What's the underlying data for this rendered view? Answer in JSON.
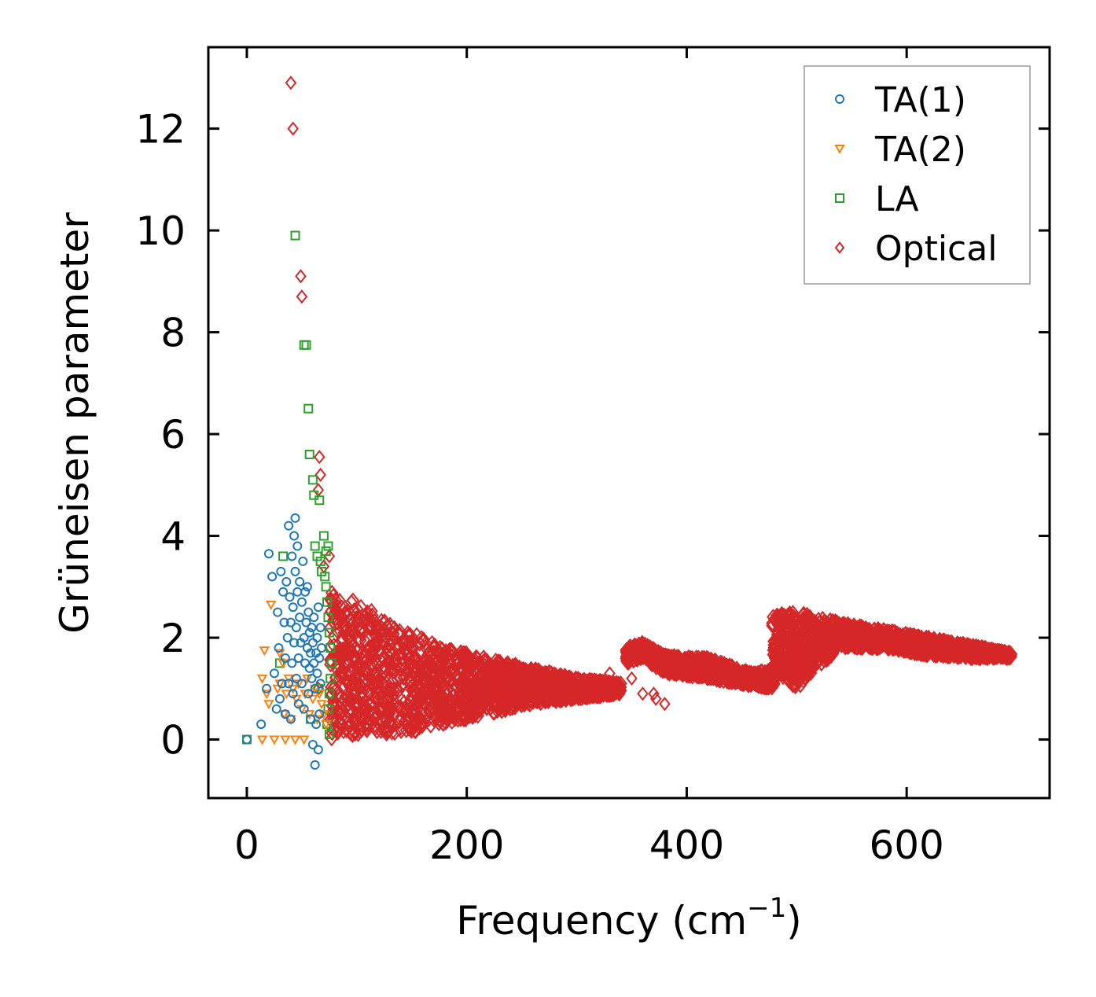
{
  "chart_data": {
    "type": "scatter",
    "title": "",
    "xlabel": "Frequency (cm",
    "xlabel_sup": "−1",
    "xlabel_end": ")",
    "ylabel": "Grüneisen parameter",
    "xlim": [
      -35,
      730
    ],
    "ylim": [
      -1.15,
      13.6
    ],
    "xticks": [
      0,
      200,
      400,
      600
    ],
    "yticks": [
      0,
      2,
      4,
      6,
      8,
      10,
      12
    ],
    "legend_position": "top-right",
    "series": [
      {
        "name": "TA(1)",
        "marker": "circle",
        "color": "#1f77b4",
        "points": [
          [
            0,
            0
          ],
          [
            13,
            0.3
          ],
          [
            18,
            1.0
          ],
          [
            20,
            3.65
          ],
          [
            23,
            3.2
          ],
          [
            25,
            1.3
          ],
          [
            27,
            0.6
          ],
          [
            28,
            2.5
          ],
          [
            29,
            1.8
          ],
          [
            30,
            0.8
          ],
          [
            31,
            3.3
          ],
          [
            32,
            1.1
          ],
          [
            33,
            2.9
          ],
          [
            34,
            2.3
          ],
          [
            35,
            0.5
          ],
          [
            35,
            1.6
          ],
          [
            36,
            3.1
          ],
          [
            37,
            2.0
          ],
          [
            38,
            1.1
          ],
          [
            38,
            4.2
          ],
          [
            39,
            2.8
          ],
          [
            40,
            0.4
          ],
          [
            40,
            2.3
          ],
          [
            41,
            1.5
          ],
          [
            41,
            3.6
          ],
          [
            42,
            0.9
          ],
          [
            42,
            2.6
          ],
          [
            43,
            4.0
          ],
          [
            43,
            1.9
          ],
          [
            44,
            3.3
          ],
          [
            44,
            4.35
          ],
          [
            45,
            1.2
          ],
          [
            45,
            2.2
          ],
          [
            46,
            2.9
          ],
          [
            46,
            3.8
          ],
          [
            47,
            1.6
          ],
          [
            47,
            0.7
          ],
          [
            48,
            2.4
          ],
          [
            48,
            3.1
          ],
          [
            49,
            1.9
          ],
          [
            50,
            1.1
          ],
          [
            50,
            2.7
          ],
          [
            51,
            3.5
          ],
          [
            52,
            2.0
          ],
          [
            52,
            0.6
          ],
          [
            53,
            1.5
          ],
          [
            53,
            2.9
          ],
          [
            54,
            2.3
          ],
          [
            55,
            1.8
          ],
          [
            55,
            3.0
          ],
          [
            56,
            0.9
          ],
          [
            56,
            2.5
          ],
          [
            57,
            1.4
          ],
          [
            57,
            2.1
          ],
          [
            58,
            1.7
          ],
          [
            58,
            0.4
          ],
          [
            59,
            2.2
          ],
          [
            59,
            1.2
          ],
          [
            60,
            1.9
          ],
          [
            60,
            -0.1
          ],
          [
            61,
            1.5
          ],
          [
            61,
            2.4
          ],
          [
            62,
            -0.5
          ],
          [
            62,
            1.0
          ],
          [
            63,
            1.7
          ],
          [
            63,
            0.3
          ],
          [
            64,
            2.0
          ],
          [
            64,
            1.3
          ],
          [
            65,
            -0.2
          ],
          [
            65,
            2.6
          ],
          [
            66,
            1.6
          ],
          [
            66,
            0.5
          ],
          [
            67,
            1.1
          ],
          [
            67,
            2.2
          ],
          [
            68,
            1.8
          ]
        ]
      },
      {
        "name": "TA(2)",
        "marker": "triangle-down",
        "color": "#ff7f0e",
        "points": [
          [
            14,
            1.2
          ],
          [
            14,
            0
          ],
          [
            18,
            0.9
          ],
          [
            20,
            0.7
          ],
          [
            25,
            0
          ],
          [
            28,
            1.0
          ],
          [
            30,
            1.1
          ],
          [
            33,
            1.5
          ],
          [
            34,
            0.5
          ],
          [
            35,
            0
          ],
          [
            36,
            0.9
          ],
          [
            38,
            1.2
          ],
          [
            40,
            0.4
          ],
          [
            42,
            1.0
          ],
          [
            44,
            0
          ],
          [
            45,
            0.8
          ],
          [
            47,
            1.1
          ],
          [
            50,
            0.6
          ],
          [
            52,
            0
          ],
          [
            53,
            0.9
          ],
          [
            55,
            1.2
          ],
          [
            57,
            0.5
          ],
          [
            60,
            0.8
          ],
          [
            62,
            1.0
          ],
          [
            64,
            0.4
          ],
          [
            66,
            0.9
          ],
          [
            68,
            0.7
          ],
          [
            70,
            0.5
          ],
          [
            72,
            0.3
          ],
          [
            22,
            2.65
          ],
          [
            16,
            1.75
          ],
          [
            30,
            1.7
          ]
        ]
      },
      {
        "name": "LA",
        "marker": "square",
        "color": "#2ca02c",
        "points": [
          [
            0,
            0
          ],
          [
            33,
            3.6
          ],
          [
            44,
            9.9
          ],
          [
            52,
            7.75
          ],
          [
            54,
            7.75
          ],
          [
            56,
            6.5
          ],
          [
            57,
            5.6
          ],
          [
            60,
            5.1
          ],
          [
            61,
            4.8
          ],
          [
            66,
            4.7
          ],
          [
            62,
            3.8
          ],
          [
            64,
            3.6
          ],
          [
            67,
            3.5
          ],
          [
            68,
            3.3
          ],
          [
            70,
            4.0
          ],
          [
            71,
            3.2
          ],
          [
            72,
            3.0
          ],
          [
            73,
            2.7
          ],
          [
            74,
            2.4
          ],
          [
            75,
            2.1
          ],
          [
            76,
            1.8
          ],
          [
            77,
            1.5
          ],
          [
            76,
            1.2
          ],
          [
            75,
            0.9
          ],
          [
            74,
            0.6
          ],
          [
            73,
            0.3
          ],
          [
            75,
            0.1
          ],
          [
            74,
            3.8
          ],
          [
            72,
            3.7
          ],
          [
            30,
            1.5
          ],
          [
            58,
            0.4
          ],
          [
            65,
            1.0
          ]
        ]
      },
      {
        "name": "Optical",
        "marker": "diamond",
        "color": "#d62728",
        "points": [
          [
            40,
            12.9
          ],
          [
            42,
            12.0
          ],
          [
            49,
            9.1
          ],
          [
            50,
            8.7
          ],
          [
            66,
            5.55
          ],
          [
            67,
            5.2
          ],
          [
            65,
            4.9
          ],
          [
            70,
            3.4
          ],
          [
            75,
            3.6
          ],
          [
            65,
            1.0
          ],
          [
            380,
            0.7
          ],
          [
            370,
            0.9
          ],
          [
            330,
            1.3
          ],
          [
            350,
            1.2
          ],
          [
            360,
            0.9
          ],
          [
            372,
            0.8
          ]
        ],
        "bands": [
          {
            "x": [
              76,
              100,
              140,
              180,
              220,
              260,
              300,
              340
            ],
            "low": [
              0.0,
              0.1,
              0.1,
              0.3,
              0.5,
              0.7,
              0.8,
              0.9
            ],
            "high": [
              3.0,
              2.7,
              2.2,
              1.8,
              1.6,
              1.4,
              1.2,
              1.1
            ]
          },
          {
            "x": [
              345,
              360,
              380,
              420,
              460,
              480
            ],
            "low": [
              1.5,
              1.6,
              1.3,
              1.2,
              1.05,
              1.0
            ],
            "high": [
              1.8,
              1.9,
              1.65,
              1.6,
              1.3,
              1.4
            ]
          },
          {
            "x": [
              478,
              500,
              540,
              580,
              620,
              660,
              695
            ],
            "low": [
              1.4,
              1.0,
              1.8,
              1.8,
              1.65,
              1.6,
              1.6
            ],
            "high": [
              2.45,
              2.5,
              2.3,
              2.15,
              2.0,
              1.85,
              1.7
            ]
          }
        ]
      }
    ]
  }
}
